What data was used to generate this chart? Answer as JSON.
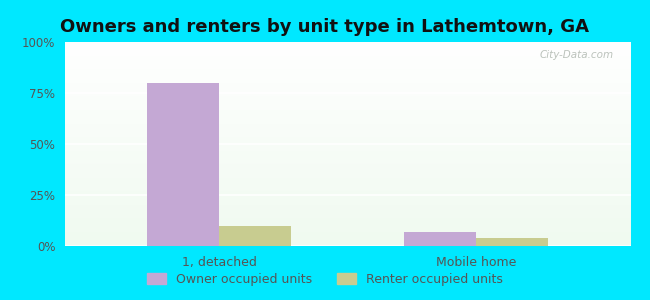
{
  "title": "Owners and renters by unit type in Lathemtown, GA",
  "categories": [
    "1, detached",
    "Mobile home"
  ],
  "owner_values": [
    80,
    7
  ],
  "renter_values": [
    10,
    4
  ],
  "owner_color": "#c4a8d4",
  "renter_color": "#c8cc90",
  "bar_width": 0.28,
  "ylim": [
    0,
    100
  ],
  "yticks": [
    0,
    25,
    50,
    75,
    100
  ],
  "ytick_labels": [
    "0%",
    "25%",
    "50%",
    "75%",
    "100%"
  ],
  "outer_bg": "#00e8ff",
  "legend_owner": "Owner occupied units",
  "legend_renter": "Renter occupied units",
  "watermark": "City-Data.com",
  "title_fontsize": 13
}
